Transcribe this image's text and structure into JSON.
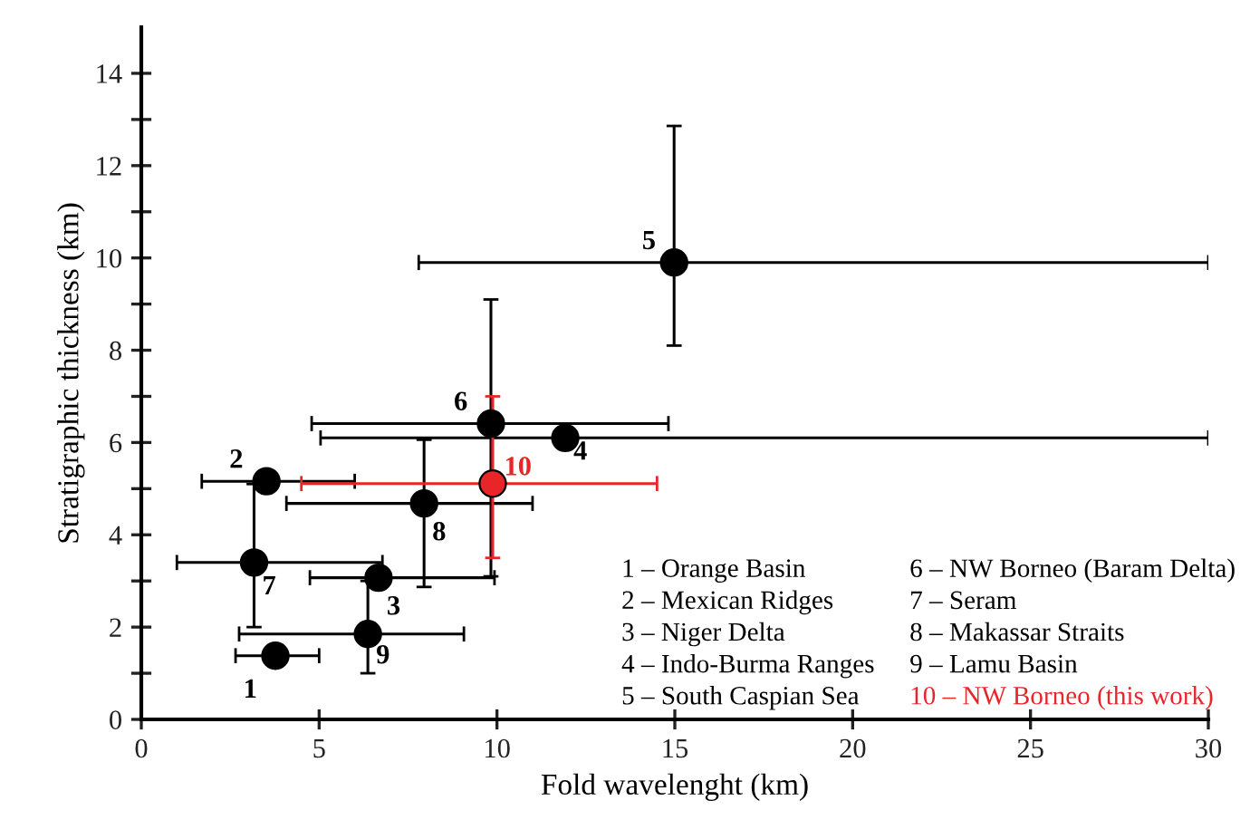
{
  "chart_data": {
    "type": "scatter",
    "xlabel": "Fold wavelenght (km)",
    "ylabel": "Stratigraphic thickness (km)",
    "xlim": [
      0,
      30
    ],
    "ylim": [
      0,
      15
    ],
    "xticks": [
      0,
      5,
      10,
      15,
      20,
      25,
      30
    ],
    "yticks": [
      0,
      {
        "value": 1,
        "label": null
      },
      2,
      {
        "value": 3,
        "label": null
      },
      4,
      {
        "value": 5,
        "label": null
      },
      6,
      {
        "value": 7,
        "label": null
      },
      8,
      {
        "value": 9,
        "label": null
      },
      10,
      {
        "value": 11,
        "label": null
      },
      12,
      {
        "value": 13,
        "label": null
      },
      14
    ],
    "grid": false,
    "legend": false,
    "marker": "circle",
    "series": [
      {
        "color": "#000000",
        "x": [
          3.77,
          3.52,
          6.67,
          11.92,
          14.98,
          9.83,
          3.17,
          7.95,
          6.37
        ],
        "values": [
          1.38,
          5.16,
          3.07,
          6.1,
          9.9,
          6.41,
          3.4,
          4.68,
          1.85
        ],
        "xerrors": [
          [
            2.65,
            5.0
          ],
          [
            1.7,
            6.0
          ],
          [
            4.74,
            9.93
          ],
          [
            5.04,
            30
          ],
          [
            7.8,
            30
          ],
          [
            4.79,
            14.82
          ],
          [
            1.0,
            6.78
          ],
          [
            4.08,
            11.0
          ],
          [
            2.75,
            9.07
          ]
        ],
        "errors": [
          null,
          null,
          null,
          null,
          [
            8.1,
            12.86
          ],
          [
            3.1,
            9.1
          ],
          [
            2.0,
            5.1
          ],
          [
            2.87,
            6.06
          ],
          [
            1.0,
            3.0
          ]
        ]
      },
      {
        "name": "10 – NW Borneo (this work)",
        "color": "#e8262a",
        "x": [
          9.88
        ],
        "values": [
          5.11
        ],
        "xerrors": [
          [
            4.5,
            14.5
          ]
        ],
        "errors": [
          [
            3.5,
            7.0
          ]
        ]
      }
    ],
    "annotations": [
      {
        "text": "1",
        "x": 3.77,
        "y": 1.38
      },
      {
        "text": "2",
        "x": 3.52,
        "y": 5.16
      },
      {
        "text": "3",
        "x": 6.67,
        "y": 3.07
      },
      {
        "text": "4",
        "x": 11.92,
        "y": 6.1
      },
      {
        "text": "5",
        "x": 14.98,
        "y": 9.9
      },
      {
        "text": "6",
        "x": 9.83,
        "y": 6.41
      },
      {
        "text": "7",
        "x": 3.17,
        "y": 3.4
      },
      {
        "text": "8",
        "x": 7.95,
        "y": 4.68
      },
      {
        "text": "9",
        "x": 6.37,
        "y": 1.85
      },
      {
        "text": "10",
        "x": 9.88,
        "y": 5.11
      },
      "1 – Orange Basin",
      "2 – Mexican Ridges",
      "3 – Niger Delta",
      "4 – Indo-Burma Ranges",
      "5 – South Caspian Sea",
      "6 – NW Borneo (Baram Delta)",
      "7 – Seram",
      "8 – Makassar Straits",
      "9 – Lamu Basin"
    ]
  }
}
